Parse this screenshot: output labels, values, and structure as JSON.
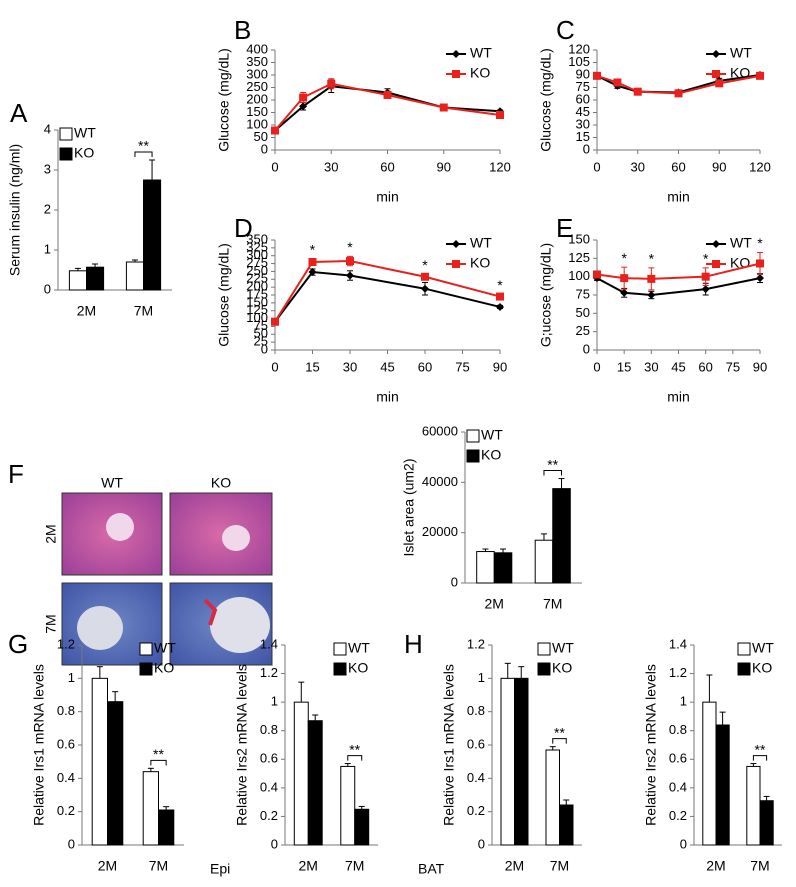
{
  "chart_data": [
    {
      "type": "bar",
      "panel": "A",
      "ylabel": "Serum insulin (ng/ml)",
      "categories": [
        "2M",
        "7M"
      ],
      "series": [
        {
          "name": "WT",
          "color": "#ffffff",
          "values": [
            0.48,
            0.7
          ],
          "errors": [
            0.06,
            0.05
          ]
        },
        {
          "name": "KO",
          "color": "#000000",
          "values": [
            0.57,
            2.75
          ],
          "errors": [
            0.08,
            0.5
          ]
        }
      ],
      "ylim": [
        0,
        4
      ],
      "yticks": [
        0,
        1,
        2,
        3,
        4
      ],
      "legend": "upper left",
      "annotations": [
        {
          "text": "**",
          "category": "7M"
        }
      ]
    },
    {
      "type": "line",
      "panel": "B",
      "ylabel": "Glucose (mg/dL)",
      "xlabel": "min",
      "x": [
        0,
        15,
        30,
        60,
        90,
        120
      ],
      "series": [
        {
          "name": "WT",
          "color": "#000000",
          "marker": "diamond",
          "values": [
            78,
            175,
            255,
            230,
            170,
            155
          ],
          "errors": [
            0,
            15,
            25,
            15,
            10,
            5
          ]
        },
        {
          "name": "KO",
          "color": "#e8211d",
          "marker": "square",
          "values": [
            78,
            210,
            265,
            220,
            170,
            140
          ],
          "errors": [
            0,
            20,
            20,
            10,
            10,
            5
          ]
        }
      ],
      "xlim": [
        0,
        120
      ],
      "xticks": [
        0,
        30,
        60,
        90,
        120
      ],
      "ylim": [
        0,
        400
      ],
      "yticks": [
        0,
        50,
        100,
        150,
        200,
        250,
        300,
        350,
        400
      ],
      "legend": "upper right",
      "annotations": []
    },
    {
      "type": "line",
      "panel": "C",
      "ylabel": "Glucose (mg/dL)",
      "xlabel": "min",
      "x": [
        0,
        15,
        30,
        60,
        90,
        120
      ],
      "series": [
        {
          "name": "WT",
          "color": "#000000",
          "marker": "diamond",
          "values": [
            89,
            77,
            70,
            69,
            83,
            90
          ],
          "errors": [
            2,
            3,
            2,
            2,
            3,
            2
          ]
        },
        {
          "name": "KO",
          "color": "#e8211d",
          "marker": "square",
          "values": [
            89,
            81,
            70,
            68,
            80,
            89
          ],
          "errors": [
            2,
            3,
            2,
            2,
            3,
            2
          ]
        }
      ],
      "xlim": [
        0,
        120
      ],
      "xticks": [
        0,
        30,
        60,
        90,
        120
      ],
      "ylim": [
        0,
        120
      ],
      "yticks": [
        0,
        15,
        30,
        45,
        60,
        75,
        90,
        105,
        120
      ],
      "legend": "upper right",
      "annotations": []
    },
    {
      "type": "line",
      "panel": "D",
      "ylabel": "Glucose (mg/dL)",
      "xlabel": "min",
      "x": [
        0,
        15,
        30,
        60,
        90
      ],
      "series": [
        {
          "name": "WT",
          "color": "#000000",
          "marker": "diamond",
          "values": [
            90,
            248,
            237,
            195,
            137
          ],
          "errors": [
            3,
            10,
            15,
            20,
            5
          ]
        },
        {
          "name": "KO",
          "color": "#e8211d",
          "marker": "square",
          "values": [
            90,
            280,
            283,
            233,
            170
          ],
          "errors": [
            3,
            10,
            15,
            8,
            8
          ]
        }
      ],
      "xlim": [
        0,
        90
      ],
      "xticks": [
        0,
        15,
        30,
        45,
        60,
        75,
        90
      ],
      "ylim": [
        0,
        350
      ],
      "yticks": [
        0,
        25,
        50,
        75,
        100,
        125,
        150,
        175,
        200,
        225,
        250,
        275,
        300,
        325,
        350
      ],
      "legend": "upper right",
      "annotations": [
        {
          "text": "*",
          "x": 15
        },
        {
          "text": "*",
          "x": 30
        },
        {
          "text": "*",
          "x": 60
        },
        {
          "text": "*",
          "x": 90
        }
      ]
    },
    {
      "type": "line",
      "panel": "E",
      "ylabel": "G;ucose (mg/dL)",
      "xlabel": "min",
      "x": [
        0,
        15,
        30,
        60,
        90
      ],
      "series": [
        {
          "name": "WT",
          "color": "#000000",
          "marker": "diamond",
          "values": [
            98,
            78,
            75,
            83,
            98
          ],
          "errors": [
            3,
            6,
            5,
            8,
            6
          ]
        },
        {
          "name": "KO",
          "color": "#e8211d",
          "marker": "square",
          "values": [
            103,
            98,
            97,
            100,
            118
          ],
          "errors": [
            3,
            15,
            15,
            12,
            15
          ]
        }
      ],
      "xlim": [
        0,
        90
      ],
      "xticks": [
        0,
        15,
        30,
        45,
        60,
        75,
        90
      ],
      "ylim": [
        0,
        150
      ],
      "yticks": [
        0,
        25,
        50,
        75,
        100,
        125,
        150
      ],
      "legend": "upper right",
      "annotations": [
        {
          "text": "*",
          "x": 15
        },
        {
          "text": "*",
          "x": 30
        },
        {
          "text": "*",
          "x": 60
        },
        {
          "text": "*",
          "x": 90
        }
      ]
    },
    {
      "type": "bar",
      "panel": "F",
      "ylabel": "Islet area (um2)",
      "categories": [
        "2M",
        "7M"
      ],
      "micrographs": {
        "columns": [
          "WT",
          "KO"
        ],
        "rows": [
          "2M",
          "7M"
        ]
      },
      "series": [
        {
          "name": "WT",
          "color": "#ffffff",
          "values": [
            12500,
            17000
          ],
          "errors": [
            1000,
            2500
          ]
        },
        {
          "name": "KO",
          "color": "#000000",
          "values": [
            12000,
            37500
          ],
          "errors": [
            1500,
            4000
          ]
        }
      ],
      "ylim": [
        0,
        60000
      ],
      "yticks": [
        0,
        20000,
        40000,
        60000
      ],
      "legend": "upper left",
      "annotations": [
        {
          "text": "**",
          "category": "7M"
        }
      ]
    },
    {
      "type": "bar",
      "panel": "G",
      "note": "Epi",
      "ylabel": "Relative Irs1 mRNA levels",
      "categories": [
        "2M",
        "7M"
      ],
      "series": [
        {
          "name": "WT",
          "color": "#ffffff",
          "values": [
            1,
            0.44
          ],
          "errors": [
            0.07,
            0.02
          ]
        },
        {
          "name": "KO",
          "color": "#000000",
          "values": [
            0.86,
            0.21
          ],
          "errors": [
            0.06,
            0.02
          ]
        }
      ],
      "ylim": [
        0,
        1.2
      ],
      "yticks": [
        0,
        0.2,
        0.4,
        0.6,
        0.8,
        1,
        1.2
      ],
      "legend": "upper right",
      "annotations": [
        {
          "text": "**",
          "category": "7M"
        }
      ]
    },
    {
      "type": "bar",
      "ylabel": "Relative Irs2 mRNA levels",
      "categories": [
        "2M",
        "7M"
      ],
      "series": [
        {
          "name": "WT",
          "color": "#ffffff",
          "values": [
            1,
            0.55
          ],
          "errors": [
            0.14,
            0.02
          ]
        },
        {
          "name": "KO",
          "color": "#000000",
          "values": [
            0.87,
            0.25
          ],
          "errors": [
            0.04,
            0.02
          ]
        }
      ],
      "ylim": [
        0,
        1.4
      ],
      "yticks": [
        0,
        0.2,
        0.4,
        0.6,
        0.8,
        1,
        1.2,
        1.4
      ],
      "legend": "upper right",
      "annotations": [
        {
          "text": "**",
          "category": "7M"
        }
      ]
    },
    {
      "type": "bar",
      "panel": "H",
      "note": "BAT",
      "ylabel": "Relative Irs1 mRNA levels",
      "categories": [
        "2M",
        "7M"
      ],
      "series": [
        {
          "name": "WT",
          "color": "#ffffff",
          "values": [
            1,
            0.57
          ],
          "errors": [
            0.09,
            0.02
          ]
        },
        {
          "name": "KO",
          "color": "#000000",
          "values": [
            1,
            0.24
          ],
          "errors": [
            0.07,
            0.03
          ]
        }
      ],
      "ylim": [
        0,
        1.2
      ],
      "yticks": [
        0,
        0.2,
        0.4,
        0.6,
        0.8,
        1,
        1.2
      ],
      "legend": "upper right",
      "annotations": [
        {
          "text": "**",
          "category": "7M"
        }
      ]
    },
    {
      "type": "bar",
      "ylabel": "Relative Irs2 mRNA levels",
      "categories": [
        "2M",
        "7M"
      ],
      "series": [
        {
          "name": "WT",
          "color": "#ffffff",
          "values": [
            1,
            0.55
          ],
          "errors": [
            0.19,
            0.02
          ]
        },
        {
          "name": "KO",
          "color": "#000000",
          "values": [
            0.84,
            0.31
          ],
          "errors": [
            0.09,
            0.03
          ]
        }
      ],
      "ylim": [
        0,
        1.4
      ],
      "yticks": [
        0,
        0.2,
        0.4,
        0.6,
        0.8,
        1,
        1.2,
        1.4
      ],
      "legend": "upper right",
      "annotations": [
        {
          "text": "**",
          "category": "7M"
        }
      ]
    }
  ]
}
